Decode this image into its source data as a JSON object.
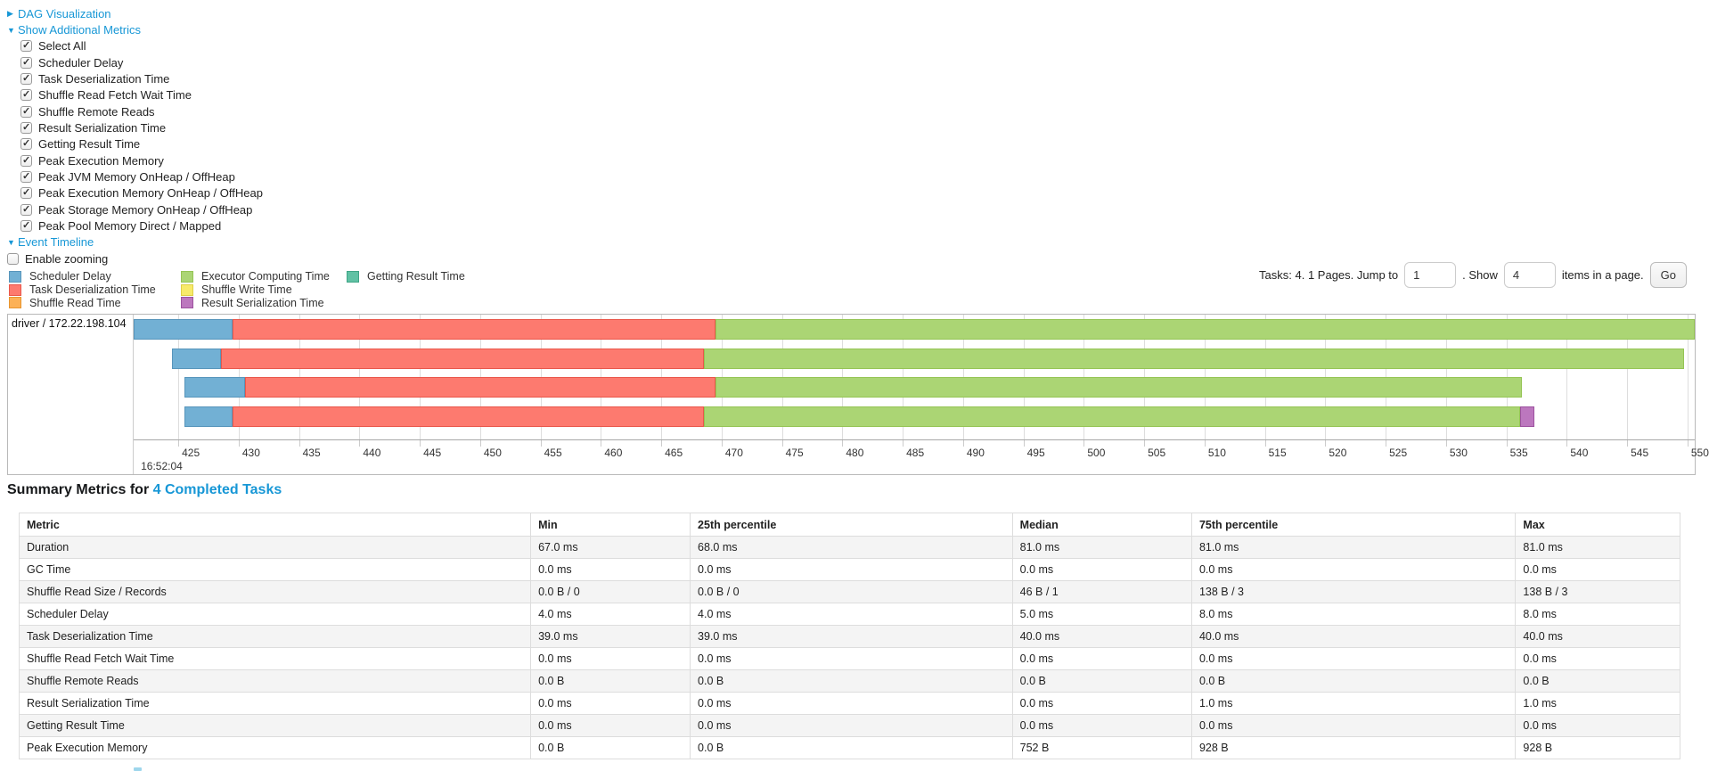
{
  "controls": {
    "dag_label": "DAG Visualization",
    "metrics_label": "Show Additional Metrics",
    "metrics_items": [
      "Select All",
      "Scheduler Delay",
      "Task Deserialization Time",
      "Shuffle Read Fetch Wait Time",
      "Shuffle Remote Reads",
      "Result Serialization Time",
      "Getting Result Time",
      "Peak Execution Memory",
      "Peak JVM Memory OnHeap / OffHeap",
      "Peak Execution Memory OnHeap / OffHeap",
      "Peak Storage Memory OnHeap / OffHeap",
      "Peak Pool Memory Direct / Mapped"
    ],
    "event_timeline_label": "Event Timeline",
    "enable_zooming_label": "Enable zooming"
  },
  "legend": {
    "items": [
      {
        "label": "Scheduler Delay",
        "fill": "#72B0D4",
        "border": "#5795BB"
      },
      {
        "label": "Task Deserialization Time",
        "fill": "#FD7A6F",
        "border": "#E9574B"
      },
      {
        "label": "Shuffle Read Time",
        "fill": "#FCB157",
        "border": "#E8952F"
      },
      {
        "label": "Executor Computing Time",
        "fill": "#ABD574",
        "border": "#95C455"
      },
      {
        "label": "Shuffle Write Time",
        "fill": "#F7EA6A",
        "border": "#DECF45"
      },
      {
        "label": "Result Serialization Time",
        "fill": "#BC77BE",
        "border": "#9D529F"
      },
      {
        "label": "Getting Result Time",
        "fill": "#60C1A4",
        "border": "#3FA586"
      }
    ]
  },
  "pagination": {
    "prefix_text": "Tasks: 4. 1 Pages. Jump to",
    "jump_value": "1",
    "mid_text": ". Show",
    "show_value": "4",
    "suffix_text": "items in a page.",
    "go_label": "Go"
  },
  "chart_data": {
    "type": "timeline-gantt",
    "row_label": "driver / 172.22.198.104",
    "x_start_time": "16:52:04",
    "x_units": "milliseconds",
    "xlim": [
      421.3,
      550.6
    ],
    "ticks": [
      425,
      430,
      435,
      440,
      445,
      450,
      455,
      460,
      465,
      470,
      475,
      480,
      485,
      490,
      495,
      500,
      505,
      510,
      515,
      520,
      525,
      530,
      535,
      540,
      545,
      550
    ],
    "grid": true,
    "tasks": [
      {
        "segments": [
          {
            "name": "Scheduler Delay",
            "start": 421.3,
            "end": 429.5
          },
          {
            "name": "Task Deserialization Time",
            "start": 429.5,
            "end": 469.5
          },
          {
            "name": "Executor Computing Time",
            "start": 469.5,
            "end": 550.6
          }
        ]
      },
      {
        "segments": [
          {
            "name": "Scheduler Delay",
            "start": 424.5,
            "end": 428.5
          },
          {
            "name": "Task Deserialization Time",
            "start": 428.5,
            "end": 468.5
          },
          {
            "name": "Executor Computing Time",
            "start": 468.5,
            "end": 549.7
          }
        ]
      },
      {
        "segments": [
          {
            "name": "Scheduler Delay",
            "start": 425.5,
            "end": 430.5
          },
          {
            "name": "Task Deserialization Time",
            "start": 430.5,
            "end": 469.5
          },
          {
            "name": "Executor Computing Time",
            "start": 469.5,
            "end": 536.3
          }
        ]
      },
      {
        "segments": [
          {
            "name": "Scheduler Delay",
            "start": 425.5,
            "end": 429.5
          },
          {
            "name": "Task Deserialization Time",
            "start": 429.5,
            "end": 468.5
          },
          {
            "name": "Executor Computing Time",
            "start": 468.5,
            "end": 536.1
          },
          {
            "name": "Result Serialization Time",
            "start": 536.1,
            "end": 537.3
          }
        ]
      }
    ]
  },
  "summary": {
    "title_prefix": "Summary Metrics for ",
    "title_link": "4 Completed Tasks",
    "columns": [
      "Metric",
      "Min",
      "25th percentile",
      "Median",
      "75th percentile",
      "Max"
    ],
    "rows": [
      {
        "metric": "Duration",
        "values": [
          "67.0 ms",
          "68.0 ms",
          "81.0 ms",
          "81.0 ms",
          "81.0 ms"
        ]
      },
      {
        "metric": "GC Time",
        "values": [
          "0.0 ms",
          "0.0 ms",
          "0.0 ms",
          "0.0 ms",
          "0.0 ms"
        ]
      },
      {
        "metric": "Shuffle Read Size / Records",
        "values": [
          "0.0 B / 0",
          "0.0 B / 0",
          "46 B / 1",
          "138 B / 3",
          "138 B / 3"
        ]
      },
      {
        "metric": "Scheduler Delay",
        "values": [
          "4.0 ms",
          "4.0 ms",
          "5.0 ms",
          "8.0 ms",
          "8.0 ms"
        ]
      },
      {
        "metric": "Task Deserialization Time",
        "values": [
          "39.0 ms",
          "39.0 ms",
          "40.0 ms",
          "40.0 ms",
          "40.0 ms"
        ]
      },
      {
        "metric": "Shuffle Read Fetch Wait Time",
        "values": [
          "0.0 ms",
          "0.0 ms",
          "0.0 ms",
          "0.0 ms",
          "0.0 ms"
        ]
      },
      {
        "metric": "Shuffle Remote Reads",
        "values": [
          "0.0 B",
          "0.0 B",
          "0.0 B",
          "0.0 B",
          "0.0 B"
        ]
      },
      {
        "metric": "Result Serialization Time",
        "values": [
          "0.0 ms",
          "0.0 ms",
          "0.0 ms",
          "1.0 ms",
          "1.0 ms"
        ]
      },
      {
        "metric": "Getting Result Time",
        "values": [
          "0.0 ms",
          "0.0 ms",
          "0.0 ms",
          "0.0 ms",
          "0.0 ms"
        ]
      },
      {
        "metric": "Peak Execution Memory",
        "values": [
          "0.0 B",
          "0.0 B",
          "752 B",
          "928 B",
          "928 B"
        ]
      }
    ]
  }
}
